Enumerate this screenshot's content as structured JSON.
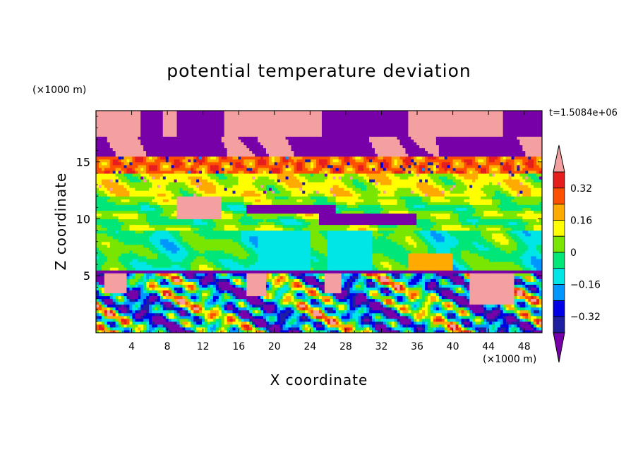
{
  "chart_data": {
    "type": "heatmap",
    "title": "potential temperature deviation",
    "xlabel": "X coordinate",
    "ylabel": "Z coordinate",
    "x_unit_label": "(×1000 m)",
    "y_unit_label": "(×1000 m)",
    "time_label": "t=1.5084e+06",
    "xlim": [
      0,
      50
    ],
    "ylim": [
      0,
      19.5
    ],
    "x_ticks": [
      4,
      8,
      12,
      16,
      20,
      24,
      28,
      32,
      36,
      40,
      44,
      48
    ],
    "y_ticks": [
      5,
      10,
      15
    ],
    "colorbar": {
      "levels": [
        -0.4,
        -0.32,
        -0.24,
        -0.16,
        -0.08,
        0,
        0.08,
        0.16,
        0.24,
        0.32,
        0.4
      ],
      "tick_labels": [
        "0.32",
        "0.16",
        "0",
        "-0.16",
        "-0.32"
      ],
      "tick_values": [
        0.32,
        0.16,
        0,
        -0.16,
        -0.32
      ],
      "colors": [
        "#7800a8",
        "#1e1ea0",
        "#0000e6",
        "#0096ff",
        "#00e6e6",
        "#00e678",
        "#78e600",
        "#ffff00",
        "#ffaa00",
        "#ff5000",
        "#e61e1e",
        "#f5a0a0"
      ],
      "extend": "both"
    },
    "regions": [
      {
        "z": [
          17.2,
          19.5
        ],
        "value": 0.45,
        "desc": "upper pink cap"
      },
      {
        "z": [
          15.5,
          18.5
        ],
        "value": -0.45,
        "desc": "upper purple band"
      },
      {
        "z": [
          14.0,
          15.5
        ],
        "value": 0.3,
        "desc": "red band"
      },
      {
        "z": [
          12.0,
          14.0
        ],
        "value": 0.1,
        "desc": "green-yellow band"
      },
      {
        "z": [
          9.0,
          12.0
        ],
        "value": 0.05,
        "desc": "green layer"
      },
      {
        "z": [
          5.5,
          9.0
        ],
        "value": -0.05,
        "desc": "cyan-green layer"
      },
      {
        "z": [
          0,
          5.5
        ],
        "value": -0.3,
        "desc": "turbulent lower layer"
      }
    ]
  }
}
